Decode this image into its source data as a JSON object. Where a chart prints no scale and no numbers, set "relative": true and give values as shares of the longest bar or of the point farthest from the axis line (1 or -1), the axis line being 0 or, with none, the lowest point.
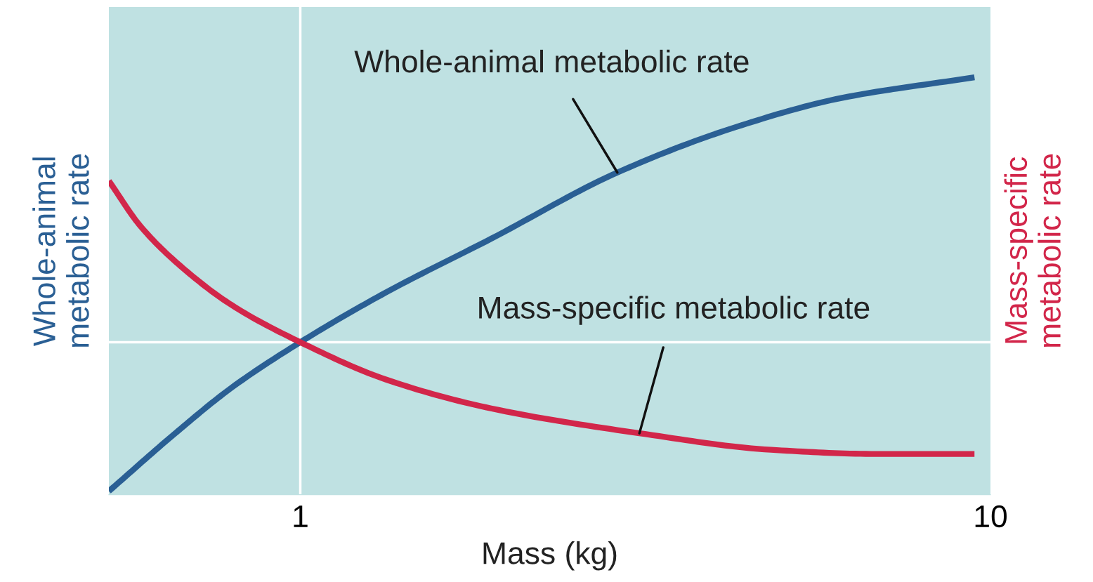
{
  "chart_data": {
    "type": "line",
    "relative": true,
    "log": "x",
    "xlabel": "Mass (kg)",
    "ylabel": "Whole-animal\nmetabolic rate",
    "y2label": "Mass-specific\nmetabolic rate",
    "xlim": [
      0.528,
      10
    ],
    "xticks": [
      1,
      10
    ],
    "tick_labels": "x",
    "grid": false,
    "legend": false,
    "marker": "none",
    "line_style": "solid",
    "series": [
      {
        "color": "#2a5f94",
        "x": [
          0.528,
          0.659,
          0.795,
          1,
          1.33,
          1.89,
          2.88,
          4.28,
          6.08,
          9.48
        ],
        "values": [
          0,
          0.14,
          0.25,
          0.36,
          0.48,
          0.61,
          0.77,
          0.88,
          0.95,
          1.0
        ]
      },
      {
        "color": "#d2264a",
        "x": [
          0.528,
          0.587,
          0.675,
          0.795,
          1,
          1.33,
          1.89,
          3.1,
          4.81,
          6.83,
          9.48
        ],
        "values": [
          0.75,
          0.64,
          0.54,
          0.45,
          0.36,
          0.27,
          0.2,
          0.14,
          0.1,
          0.09,
          0.09
        ]
      }
    ],
    "annotations": [
      {
        "text": "Whole-animal metabolic rate",
        "x": 2.88,
        "y": 0.77
      },
      {
        "text": "Mass-specific metabolic rate",
        "x": 3.1,
        "y": 0.14
      }
    ],
    "ref_lines": [
      {
        "axis": "x",
        "value": 1,
        "color": "#ffffff"
      },
      {
        "axis": "y",
        "value": 0.36,
        "color": "#ffffff"
      }
    ]
  }
}
